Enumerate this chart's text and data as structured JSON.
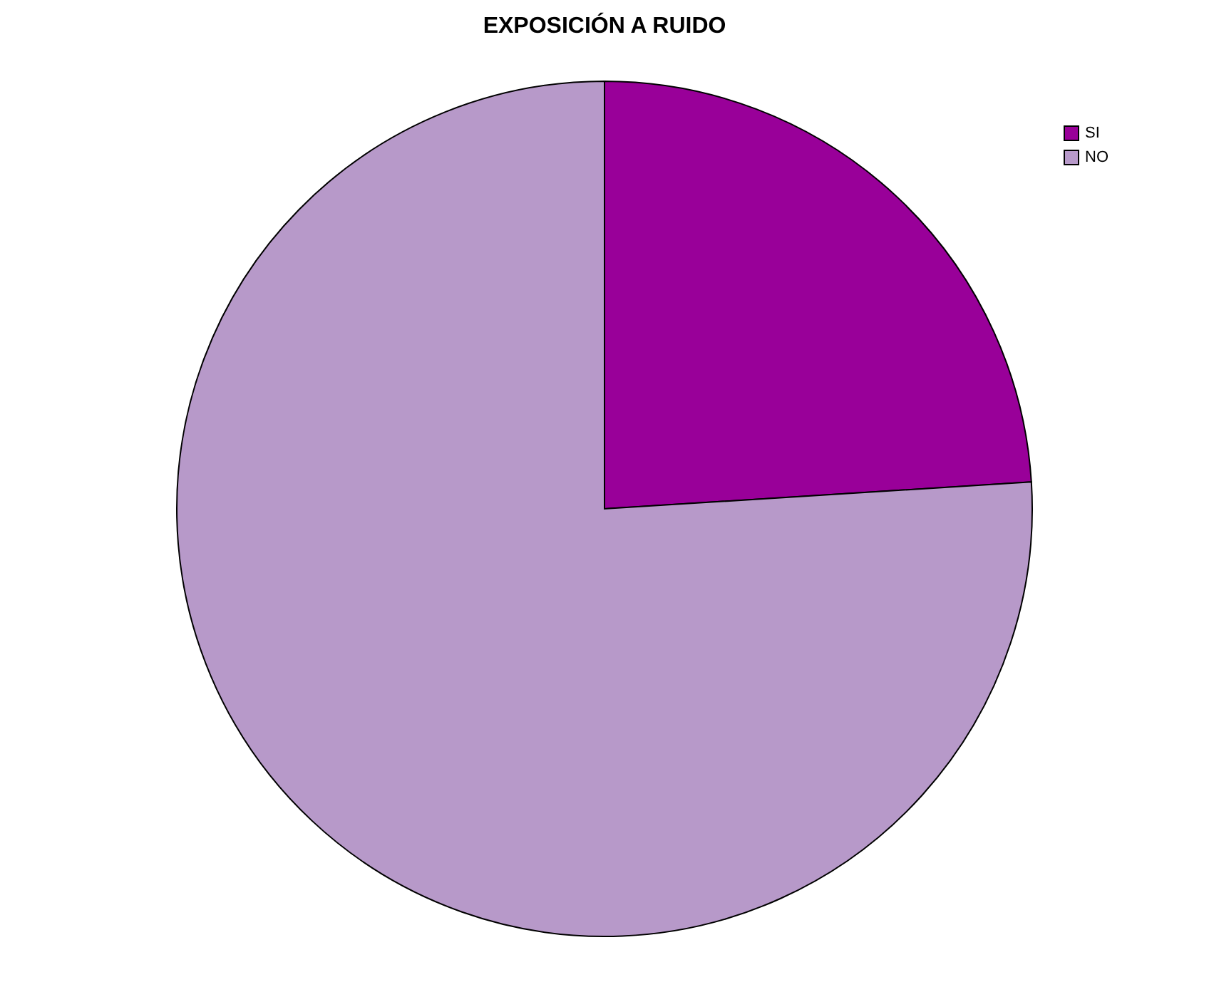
{
  "chart_data": {
    "type": "pie",
    "title": "EXPOSICIÓN A RUIDO",
    "categories": [
      "SI",
      "NO"
    ],
    "values": [
      24,
      76
    ],
    "colors": [
      "#990099",
      "#b799c9"
    ],
    "legend": "top right"
  }
}
